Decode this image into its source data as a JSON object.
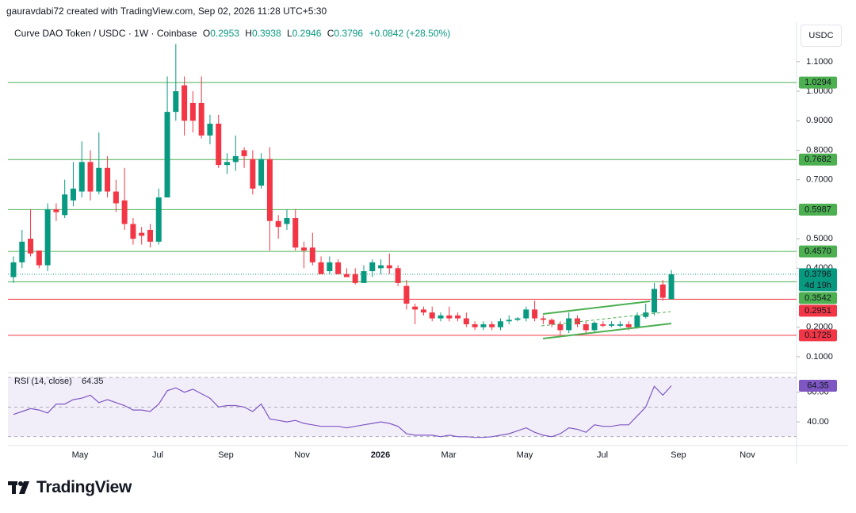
{
  "header": {
    "credit": "gauravdabi72 created with TradingView.com, Sep 02, 2026 11:28 UTC+5:30",
    "symbol": "Curve DAO Token / USDC · 1W · Coinbase",
    "o_label": "O",
    "h_label": "H",
    "l_label": "L",
    "c_label": "C",
    "change": "+0.0842",
    "change_pct": "(+28.50%)",
    "unit": "USDC",
    "logo": "TradingView"
  },
  "chart_data": {
    "type": "candlestick",
    "open": [
      0.37,
      0.42,
      0.5,
      0.46,
      0.41,
      0.6,
      0.58,
      0.63,
      0.66,
      0.76,
      0.66,
      0.74,
      0.66,
      0.63,
      0.55,
      0.52,
      0.53,
      0.49,
      0.64,
      0.93,
      1.02,
      0.96,
      0.96,
      0.85,
      0.89,
      0.75,
      0.76,
      0.8,
      0.77,
      0.68,
      0.77,
      0.56,
      0.55,
      0.57,
      0.47,
      0.47,
      0.42,
      0.39,
      0.42,
      0.38,
      0.38,
      0.35,
      0.39,
      0.4,
      0.41,
      0.4,
      0.34,
      0.27,
      0.26,
      0.25,
      0.23,
      0.24,
      0.24,
      0.23,
      0.21,
      0.2,
      0.21,
      0.2,
      0.22,
      0.225,
      0.23,
      0.26,
      0.23,
      0.225,
      0.21,
      0.19,
      0.23,
      0.21,
      0.19,
      0.21,
      0.205,
      0.205,
      0.21,
      0.2,
      0.235,
      0.25,
      0.345,
      0.2953
    ],
    "high": [
      0.44,
      0.53,
      0.6,
      0.46,
      0.62,
      0.62,
      0.7,
      0.76,
      0.83,
      0.8,
      0.86,
      0.78,
      0.7,
      0.74,
      0.57,
      0.54,
      0.55,
      0.67,
      1.05,
      1.16,
      1.05,
      1.0,
      1.05,
      0.92,
      0.92,
      0.79,
      0.85,
      0.81,
      0.8,
      0.79,
      0.81,
      0.58,
      0.6,
      0.6,
      0.49,
      0.52,
      0.44,
      0.44,
      0.43,
      0.4,
      0.4,
      0.41,
      0.43,
      0.43,
      0.45,
      0.41,
      0.36,
      0.28,
      0.27,
      0.27,
      0.25,
      0.27,
      0.25,
      0.25,
      0.22,
      0.22,
      0.22,
      0.23,
      0.24,
      0.235,
      0.27,
      0.29,
      0.24,
      0.23,
      0.22,
      0.25,
      0.24,
      0.22,
      0.22,
      0.22,
      0.22,
      0.22,
      0.22,
      0.25,
      0.28,
      0.35,
      0.36,
      0.3938
    ],
    "low": [
      0.35,
      0.4,
      0.44,
      0.4,
      0.39,
      0.56,
      0.57,
      0.61,
      0.64,
      0.63,
      0.65,
      0.64,
      0.59,
      0.53,
      0.48,
      0.48,
      0.47,
      0.48,
      0.64,
      0.9,
      0.85,
      0.86,
      0.84,
      0.82,
      0.74,
      0.72,
      0.73,
      0.74,
      0.65,
      0.67,
      0.46,
      0.5,
      0.53,
      0.46,
      0.4,
      0.41,
      0.38,
      0.38,
      0.38,
      0.37,
      0.345,
      0.35,
      0.37,
      0.38,
      0.38,
      0.34,
      0.26,
      0.21,
      0.24,
      0.22,
      0.22,
      0.22,
      0.22,
      0.2,
      0.19,
      0.19,
      0.19,
      0.19,
      0.21,
      0.22,
      0.22,
      0.22,
      0.21,
      0.2,
      0.175,
      0.18,
      0.2,
      0.18,
      0.185,
      0.2,
      0.2,
      0.2,
      0.19,
      0.195,
      0.23,
      0.24,
      0.29,
      0.2946
    ],
    "close": [
      0.42,
      0.49,
      0.45,
      0.41,
      0.6,
      0.59,
      0.65,
      0.67,
      0.76,
      0.66,
      0.74,
      0.66,
      0.62,
      0.55,
      0.5,
      0.51,
      0.49,
      0.64,
      0.93,
      1.0,
      0.9,
      0.9,
      0.85,
      0.89,
      0.75,
      0.76,
      0.78,
      0.78,
      0.67,
      0.77,
      0.56,
      0.54,
      0.57,
      0.47,
      0.46,
      0.42,
      0.38,
      0.42,
      0.38,
      0.37,
      0.35,
      0.39,
      0.42,
      0.41,
      0.4,
      0.35,
      0.28,
      0.26,
      0.25,
      0.23,
      0.24,
      0.23,
      0.23,
      0.21,
      0.2,
      0.21,
      0.2,
      0.22,
      0.225,
      0.23,
      0.26,
      0.23,
      0.225,
      0.21,
      0.19,
      0.23,
      0.21,
      0.19,
      0.215,
      0.205,
      0.21,
      0.21,
      0.2,
      0.24,
      0.25,
      0.33,
      0.3,
      0.3796
    ],
    "up_color": "#089981",
    "down_color": "#f23645",
    "xlim": [
      -0.65,
      91.65
    ],
    "xticks": [
      {
        "value": 7.79,
        "label": "May"
      },
      {
        "value": 16.88,
        "label": "Jul"
      },
      {
        "value": 24.86,
        "label": "Sep"
      },
      {
        "value": 33.77,
        "label": "Nov"
      },
      {
        "value": 42.95,
        "label": "2026"
      },
      {
        "value": 50.93,
        "label": "Mar"
      },
      {
        "value": 59.83,
        "label": "May"
      },
      {
        "value": 68.93,
        "label": "Jul"
      },
      {
        "value": 77.83,
        "label": "Sep"
      },
      {
        "value": 85.9,
        "label": "Nov"
      }
    ],
    "ylim": [
      0.046,
      1.234
    ],
    "yticks": [
      {
        "value": 0.1,
        "label": "0.1000"
      },
      {
        "value": 0.2,
        "label": "0.2000"
      },
      {
        "value": 0.4,
        "label": "0.4000"
      },
      {
        "value": 0.5,
        "label": "0.5000"
      },
      {
        "value": 0.7,
        "label": "0.7000"
      },
      {
        "value": 0.8,
        "label": "0.8000"
      },
      {
        "value": 0.9,
        "label": "0.9000"
      },
      {
        "value": 1.0,
        "label": "1.0000"
      },
      {
        "value": 1.1,
        "label": "1.1000"
      }
    ],
    "grid": false,
    "levels": [
      {
        "value": 1.0294,
        "label": "1.0294",
        "color": "#4caf50"
      },
      {
        "value": 0.7682,
        "label": "0.7682",
        "color": "#4caf50"
      },
      {
        "value": 0.5987,
        "label": "0.5987",
        "color": "#4caf50"
      },
      {
        "value": 0.457,
        "label": "0.4570",
        "color": "#4caf50"
      },
      {
        "value": 0.3542,
        "label": "0.3542",
        "color": "#4caf50"
      },
      {
        "value": 0.2951,
        "label": "0.2951",
        "color": "#f23645"
      },
      {
        "value": 0.1725,
        "label": "0.1725",
        "color": "#f23645"
      }
    ],
    "countdown": "4d 19h",
    "rsi": {
      "title": "RSI (14, close)",
      "color": "#7e57c2",
      "values": [
        45,
        47,
        49,
        48,
        46,
        52,
        52,
        55,
        56,
        58,
        53,
        55,
        53,
        51,
        48,
        48,
        47,
        52,
        61,
        63,
        60,
        62,
        59,
        56,
        50,
        51,
        51,
        50,
        47,
        52,
        42,
        41,
        40,
        41,
        39,
        38,
        37,
        37,
        37,
        36,
        37,
        38,
        39,
        40,
        39,
        37,
        32,
        31,
        31,
        31,
        30,
        31,
        30,
        30,
        29.5,
        29.5,
        30,
        31,
        32,
        34,
        36,
        33,
        31,
        30,
        32,
        36,
        35,
        33,
        38,
        37,
        37,
        38,
        38,
        44,
        50,
        64,
        58,
        64.35
      ],
      "value_labels": {
        "77": "64.35"
      },
      "ylim": [
        24,
        73.2
      ],
      "yticks": [
        {
          "value": 60,
          "label": "60.00"
        },
        {
          "value": 40,
          "label": "40.00"
        }
      ],
      "bands": [
        70,
        50,
        30
      ]
    }
  }
}
